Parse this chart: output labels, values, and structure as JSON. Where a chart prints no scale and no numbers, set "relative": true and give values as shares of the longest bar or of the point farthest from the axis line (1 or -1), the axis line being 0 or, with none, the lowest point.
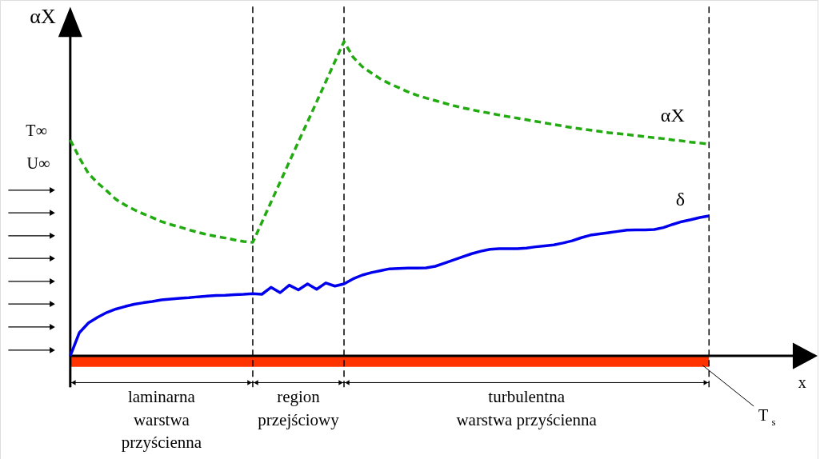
{
  "chart_data": {
    "type": "line",
    "relative": true,
    "ylabel": "αX",
    "legend": false,
    "grid": false,
    "tick_labels": false,
    "categories": [
      null,
      null,
      null,
      null,
      null,
      null,
      null,
      null,
      null,
      null,
      null,
      null,
      null,
      null,
      null,
      null,
      null,
      null,
      null,
      null,
      null,
      null,
      null,
      null,
      null,
      null,
      null,
      null,
      null,
      null,
      null,
      null,
      null,
      null,
      null,
      null,
      null,
      null,
      null,
      null,
      null,
      null,
      null,
      null,
      null,
      null,
      null,
      null,
      null,
      null,
      null,
      null,
      null,
      null,
      null,
      null,
      null,
      null,
      null,
      null,
      null,
      null,
      null,
      null,
      null,
      null,
      null,
      null,
      null,
      null,
      null
    ],
    "series": [
      {
        "name": "αX",
        "color": "#22aa11",
        "line_style": "dashed",
        "values": [
          0.687,
          0.63,
          0.58,
          0.55,
          0.525,
          0.498,
          0.48,
          0.465,
          0.452,
          0.44,
          0.427,
          0.418,
          0.41,
          0.401,
          0.393,
          0.386,
          0.38,
          0.375,
          0.369,
          0.364,
          0.361,
          0.425,
          0.489,
          0.553,
          0.617,
          0.681,
          0.744,
          0.808,
          0.872,
          0.936,
          1.0,
          0.95,
          0.92,
          0.9,
          0.881,
          0.866,
          0.853,
          0.84,
          0.829,
          0.82,
          0.812,
          0.804,
          0.796,
          0.789,
          0.783,
          0.777,
          0.772,
          0.766,
          0.761,
          0.756,
          0.751,
          0.746,
          0.741,
          0.736,
          0.731,
          0.726,
          0.722,
          0.718,
          0.714,
          0.71,
          0.707,
          0.704,
          0.701,
          0.697,
          0.694,
          0.691,
          0.687,
          0.684,
          0.68,
          0.677,
          0.674
        ]
      },
      {
        "name": "δ",
        "color": "#0000ee",
        "line_style": "solid",
        "values": [
          0,
          0.074,
          0.105,
          0.123,
          0.138,
          0.149,
          0.157,
          0.164,
          0.169,
          0.173,
          0.178,
          0.181,
          0.183,
          0.185,
          0.188,
          0.19,
          0.192,
          0.193,
          0.195,
          0.196,
          0.198,
          0.196,
          0.218,
          0.201,
          0.225,
          0.21,
          0.229,
          0.212,
          0.232,
          0.222,
          0.229,
          0.245,
          0.257,
          0.265,
          0.271,
          0.277,
          0.278,
          0.279,
          0.279,
          0.28,
          0.285,
          0.295,
          0.305,
          0.315,
          0.325,
          0.333,
          0.339,
          0.341,
          0.341,
          0.341,
          0.343,
          0.347,
          0.35,
          0.353,
          0.359,
          0.366,
          0.376,
          0.384,
          0.388,
          0.392,
          0.396,
          0.4,
          0.401,
          0.401,
          0.402,
          0.408,
          0.418,
          0.427,
          0.433,
          0.44,
          0.445
        ]
      }
    ],
    "bands": [
      {
        "axis": "y",
        "from": -0.035,
        "to": 0,
        "color": "#ff3300"
      }
    ],
    "annotations": [
      "laminarna\nwarstwa\nprzyścienna",
      "region\nprzejściowy",
      "turbulentna\nwarstwa przyścienna",
      "T∞",
      "U∞",
      "T$_{s}$",
      "x"
    ]
  }
}
